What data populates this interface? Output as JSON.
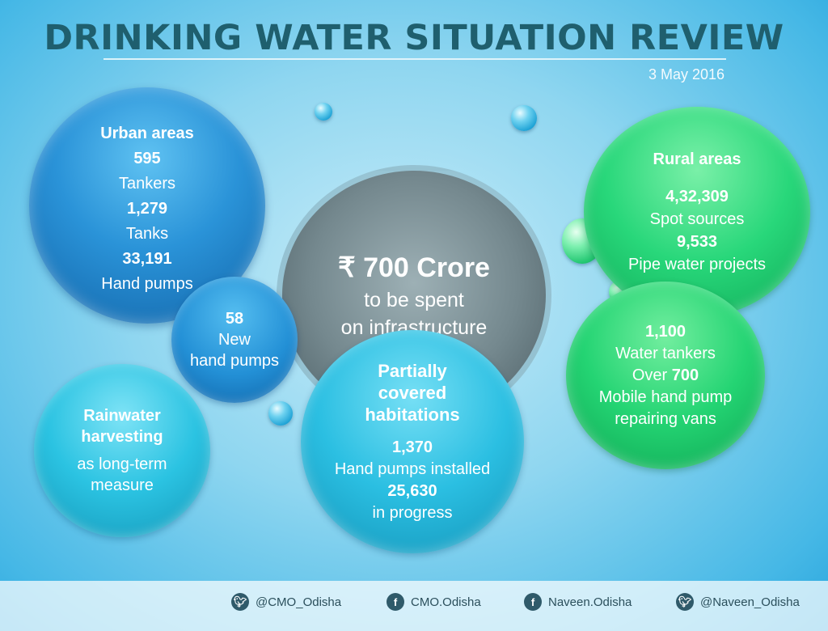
{
  "title": "DRINKING WATER SITUATION REVIEW",
  "date": "3 May 2016",
  "urban": {
    "heading": "Urban areas",
    "tankers_count": "595",
    "tankers_label": "Tankers",
    "tanks_count": "1,279",
    "tanks_label": "Tanks",
    "pumps_count": "33,191",
    "pumps_label": "Hand pumps"
  },
  "new_pumps": {
    "count": "58",
    "line1": "New",
    "line2": "hand pumps"
  },
  "center": {
    "amount": "₹ 700 Crore",
    "line1": "to be spent",
    "line2": "on infrastructure"
  },
  "rain": {
    "line1": "Rainwater",
    "line2": "harvesting",
    "line3": "as long-term",
    "line4": "measure"
  },
  "partial": {
    "line1": "Partially",
    "line2": "covered",
    "line3": "habitations",
    "installed_count": "1,370",
    "installed_label": "Hand pumps installed",
    "progress_count": "25,630",
    "progress_label": "in progress"
  },
  "rural": {
    "heading": "Rural areas",
    "spot_count": "4,32,309",
    "spot_label": "Spot sources",
    "pipe_count": "9,533",
    "pipe_label": "Pipe water projects"
  },
  "tankers": {
    "count": "1,100",
    "label": "Water tankers",
    "over_prefix": "Over",
    "over_count": "700",
    "vans_line1": "Mobile hand pump",
    "vans_line2": "repairing vans"
  },
  "footer": [
    {
      "icon": "twitter-icon",
      "handle": "@CMO_Odisha"
    },
    {
      "icon": "facebook-icon",
      "handle": "CMO.Odisha"
    },
    {
      "icon": "facebook-icon",
      "handle": "Naveen.Odisha"
    },
    {
      "icon": "twitter-icon",
      "handle": "@Naveen_Odisha"
    }
  ]
}
